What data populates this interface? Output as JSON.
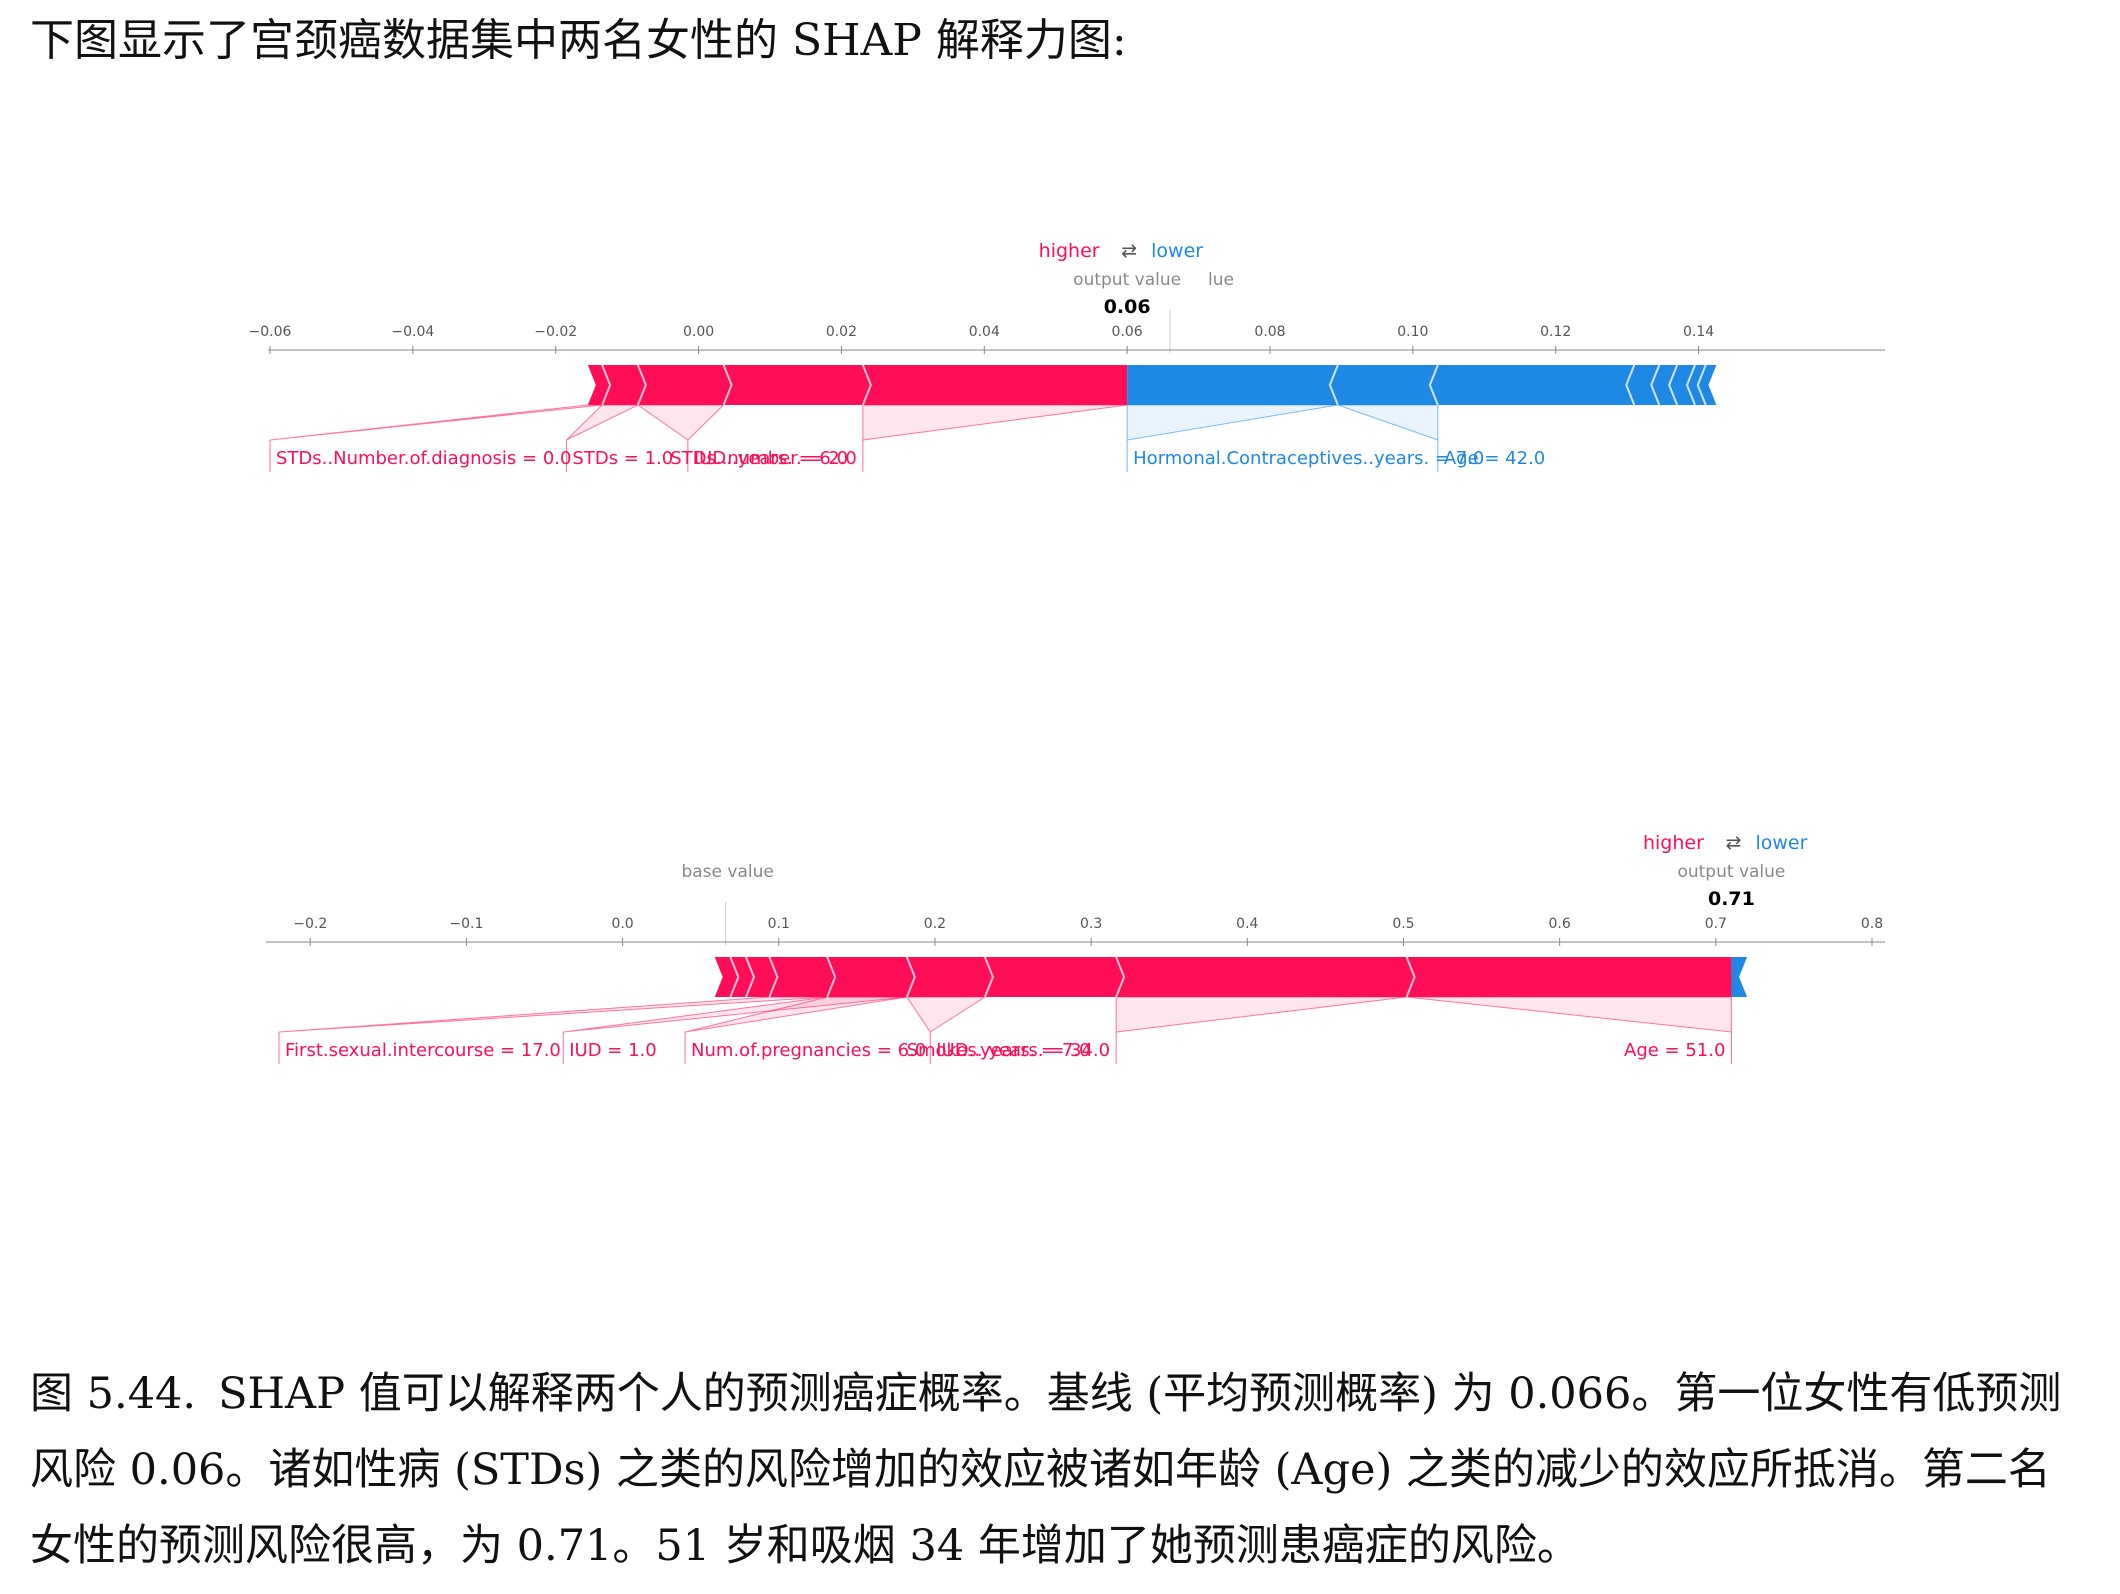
{
  "intro_text": "下图显示了宫颈癌数据集中两名女性的 SHAP 解释力图:",
  "caption": {
    "label": "图 5.44.",
    "text": "SHAP 值可以解释两个人的预测癌症概率。基线 (平均预测概率) 为 0.066。第一位女性有低预测风险 0.06。诸如性病 (STDs) 之类的风险增加的效应被诸如年龄 (Age) 之类的减少的效应所抵消。第二名女性的预测风险很高，为 0.71。51 岁和吸烟 34 年增加了她预测患癌症的风险。"
  },
  "colors": {
    "higher": "#ff0d57",
    "lower": "#1e88e5",
    "axis": "#555555",
    "label_gray": "#888888"
  },
  "chart_data": [
    {
      "type": "force",
      "legend": {
        "higher": "higher",
        "arrow": "⇄",
        "lower": "lower"
      },
      "output_label": "output value",
      "base_label_fragment": "lue",
      "output_value": 0.06,
      "output_value_text": "0.06",
      "base_value": 0.066,
      "xlim": [
        -0.06,
        0.15
      ],
      "ticks": [
        {
          "v": -0.06,
          "t": "−0.06"
        },
        {
          "v": -0.04,
          "t": "−0.04"
        },
        {
          "v": -0.02,
          "t": "−0.02"
        },
        {
          "v": 0.0,
          "t": "0.00"
        },
        {
          "v": 0.02,
          "t": "0.02"
        },
        {
          "v": 0.04,
          "t": "0.04"
        },
        {
          "v": 0.06,
          "t": "0.06"
        },
        {
          "v": 0.08,
          "t": "0.08"
        },
        {
          "v": 0.1,
          "t": "0.10"
        },
        {
          "v": 0.12,
          "t": "0.12"
        },
        {
          "v": 0.14,
          "t": "0.14"
        }
      ],
      "positive_edges": [
        -0.0155,
        -0.0135,
        -0.0085,
        0.0035,
        0.023,
        0.06
      ],
      "negative_edges": [
        0.06,
        0.0895,
        0.1035,
        0.131,
        0.1345,
        0.137,
        0.1395,
        0.141,
        0.1425
      ],
      "labels": [
        {
          "side": "higher",
          "text": "STDs..Number.of.diagnosis = 0.0",
          "seg": [
            -0.0155,
            -0.0135
          ],
          "at": -0.06
        },
        {
          "side": "higher",
          "text": "STDs = 1.0",
          "seg": [
            -0.0135,
            -0.0085
          ],
          "at": -0.0185
        },
        {
          "side": "higher",
          "text": "IUD..years. = 6.0",
          "seg": [
            -0.0085,
            0.0035
          ],
          "at": -0.0015
        },
        {
          "side": "higher",
          "text": "STDs..number. = 2.0",
          "seg": [
            0.023,
            0.06
          ],
          "at": 0.023
        },
        {
          "side": "lower",
          "text": "Hormonal.Contraceptives..years. = 7.0",
          "seg": [
            0.06,
            0.0895
          ],
          "at": 0.06
        },
        {
          "side": "lower",
          "text": "Age = 42.0",
          "seg": [
            0.0895,
            0.1035
          ],
          "at": 0.1035
        }
      ]
    },
    {
      "type": "force",
      "legend": {
        "higher": "higher",
        "arrow": "⇄",
        "lower": "lower"
      },
      "output_label": "output value",
      "base_label": "base value",
      "output_value": 0.71,
      "output_value_text": "0.71",
      "base_value": 0.066,
      "xlim": [
        -0.22,
        0.8
      ],
      "ticks": [
        {
          "v": -0.2,
          "t": "−0.2"
        },
        {
          "v": -0.1,
          "t": "−0.1"
        },
        {
          "v": 0.0,
          "t": "0.0"
        },
        {
          "v": 0.1,
          "t": "0.1"
        },
        {
          "v": 0.2,
          "t": "0.2"
        },
        {
          "v": 0.3,
          "t": "0.3"
        },
        {
          "v": 0.4,
          "t": "0.4"
        },
        {
          "v": 0.5,
          "t": "0.5"
        },
        {
          "v": 0.6,
          "t": "0.6"
        },
        {
          "v": 0.7,
          "t": "0.7"
        },
        {
          "v": 0.8,
          "t": "0.8"
        }
      ],
      "positive_edges": [
        0.059,
        0.069,
        0.079,
        0.094,
        0.131,
        0.182,
        0.232,
        0.316,
        0.502,
        0.71
      ],
      "negative_edges": [
        0.71,
        0.72
      ],
      "labels": [
        {
          "side": "higher",
          "text": "First.sexual.intercourse = 17.0",
          "seg": [
            0.094,
            0.131
          ],
          "at": -0.22
        },
        {
          "side": "higher",
          "text": "IUD = 1.0",
          "seg": [
            0.131,
            0.182
          ],
          "at": -0.038
        },
        {
          "side": "higher",
          "text": "Num.of.pregnancies = 6.0",
          "seg": [
            0.131,
            0.182
          ],
          "at": 0.04
        },
        {
          "side": "higher",
          "text": "IUD..years. = 7.0",
          "seg": [
            0.182,
            0.232
          ],
          "at": 0.197
        },
        {
          "side": "higher",
          "text": "Smokes..years. = 34.0",
          "seg": [
            0.316,
            0.502
          ],
          "at": 0.316
        },
        {
          "side": "higher",
          "text": "Age = 51.0",
          "seg": [
            0.502,
            0.71
          ],
          "at": 0.71
        }
      ]
    }
  ]
}
